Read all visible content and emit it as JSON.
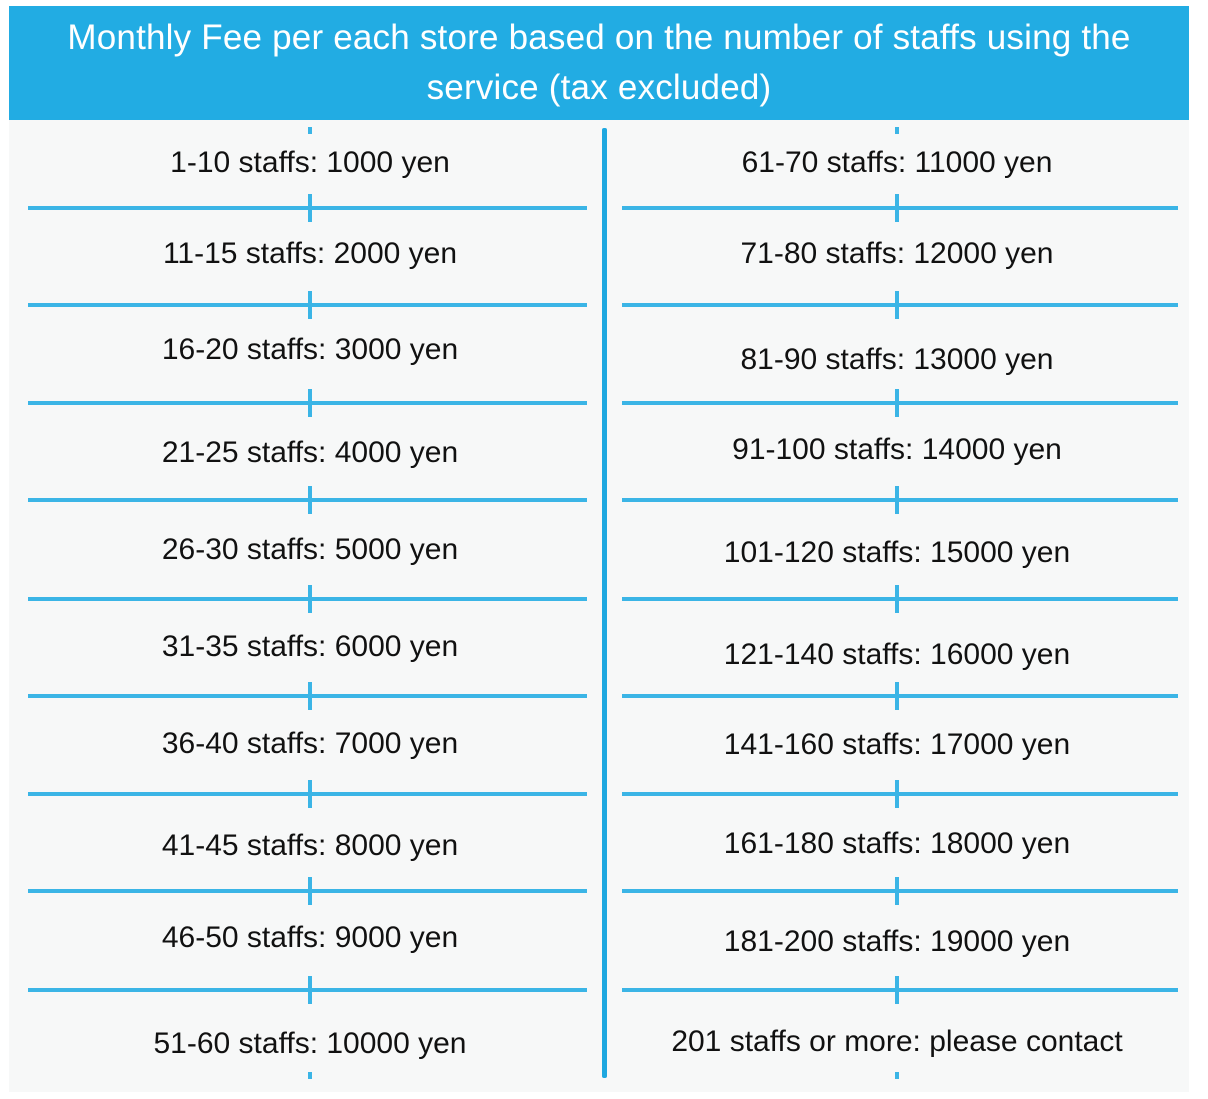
{
  "title": "Monthly Fee per each store based on the number of staffs using the service (tax excluded)",
  "accent_color": "#22ace3",
  "left_column": [
    "1-10 staffs: 1000 yen",
    "11-15 staffs: 2000 yen",
    "16-20 staffs: 3000 yen",
    "21-25 staffs: 4000 yen",
    "26-30 staffs: 5000 yen",
    "31-35 staffs: 6000 yen",
    "36-40 staffs: 7000 yen",
    "41-45 staffs: 8000 yen",
    "46-50 staffs: 9000 yen",
    "51-60 staffs: 10000 yen"
  ],
  "right_column": [
    "61-70 staffs: 11000 yen",
    "71-80 staffs: 12000 yen",
    "81-90 staffs: 13000 yen",
    "91-100 staffs: 14000 yen",
    "101-120 staffs: 15000 yen",
    "121-140 staffs: 16000 yen",
    "141-160 staffs: 17000 yen",
    "161-180 staffs: 18000 yen",
    "181-200 staffs: 19000 yen",
    "201 staffs or more: please contact"
  ]
}
